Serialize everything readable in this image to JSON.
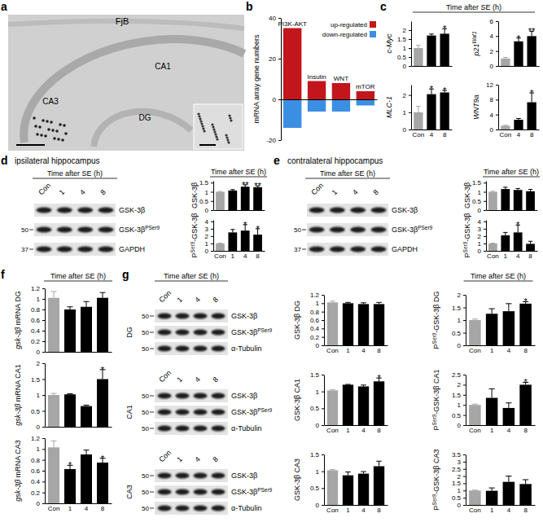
{
  "panel_letters": [
    "a",
    "b",
    "c",
    "d",
    "e",
    "f",
    "g"
  ],
  "time_header": "Time after SE (h)",
  "sections": [
    "ipsilateral hippocampus",
    "contralateral hippocampus"
  ],
  "micrograph": {
    "title": "FjB",
    "regions": [
      "CA1",
      "DG",
      "CA3"
    ]
  },
  "blots": [
    {
      "lanes": [
        "Con",
        "1",
        "4",
        "8"
      ],
      "bands": [
        [
          {
            "t": "GSK-3β"
          }
        ],
        [
          {
            "t": "GSK-3β"
          },
          {
            "t": "PSer9",
            "sup": true
          }
        ],
        [
          {
            "t": "GAPDH"
          }
        ]
      ],
      "mw": [
        null,
        50,
        37
      ]
    },
    {
      "lanes": [
        "Con",
        "1",
        "4",
        "8"
      ],
      "bands": [
        [
          {
            "t": "GSK-3β"
          }
        ],
        [
          {
            "t": "GSK-3β"
          },
          {
            "t": "PSer9",
            "sup": true
          }
        ],
        [
          {
            "t": "GAPDH"
          }
        ]
      ],
      "mw": [
        null,
        50,
        37
      ]
    },
    {
      "region": "DG",
      "lanes": [
        "Con",
        "1",
        "4",
        "8"
      ],
      "bands": [
        [
          {
            "t": "GSK-3β"
          }
        ],
        [
          {
            "t": "GSK-3β"
          },
          {
            "t": "PSer9",
            "sup": true
          }
        ],
        [
          {
            "t": "α-Tubulin"
          }
        ]
      ],
      "mw": [
        50,
        50,
        50
      ]
    },
    {
      "region": "CA1",
      "lanes": [
        "Con",
        "1",
        "4",
        "8"
      ],
      "bands": [
        [
          {
            "t": "GSK-3β"
          }
        ],
        [
          {
            "t": "GSK-3β"
          },
          {
            "t": "PSer9",
            "sup": true
          }
        ],
        [
          {
            "t": "α-Tubulin"
          }
        ]
      ],
      "mw": [
        50,
        50,
        50
      ]
    },
    {
      "region": "CA3",
      "lanes": [
        "Con",
        "1",
        "4",
        "8"
      ],
      "bands": [
        [
          {
            "t": "GSK-3β"
          }
        ],
        [
          {
            "t": "GSK-3β"
          },
          {
            "t": "PSer9",
            "sup": true
          }
        ],
        [
          {
            "t": "α-Tubulin"
          }
        ]
      ],
      "mw": [
        50,
        50,
        50
      ]
    }
  ],
  "chart_data": [
    {
      "type": "bar",
      "y_label": [
        {
          "t": "mRNA array gene numbers"
        }
      ],
      "categories": [
        "PI3K-AKT",
        "Insulin",
        "WNT",
        "mTOR"
      ],
      "series": [
        {
          "name": "up-regulated",
          "color": "#c3161c",
          "values": [
            35,
            9,
            8,
            4
          ]
        },
        {
          "name": "down-regulated",
          "color": "#3b8fe3",
          "values": [
            -14,
            -6,
            -6,
            -3
          ]
        }
      ],
      "ylim": [
        -20,
        40
      ],
      "yticks": [
        -20,
        0,
        20,
        40
      ],
      "legend": "top-right"
    },
    {
      "type": "bar",
      "y_label": [
        {
          "t": "c-Myc"
        }
      ],
      "categories": [
        null,
        null,
        null
      ],
      "values": [
        1,
        1.7,
        1.8
      ],
      "errors": [
        0.15,
        0.08,
        0.28
      ],
      "stars": [
        null,
        null,
        "*"
      ],
      "colors": [
        "#a6a6a6",
        "#000000",
        "#000000"
      ],
      "ylim": [
        0,
        2.5
      ],
      "yticks": [
        0,
        0.5,
        1,
        1.5,
        2
      ]
    },
    {
      "type": "bar",
      "y_label": [
        {
          "t": "MLC-1"
        }
      ],
      "categories": [
        "Con",
        "4",
        "8"
      ],
      "values": [
        1,
        2.05,
        2.15
      ],
      "errors": [
        0.35,
        0.3,
        0.12
      ],
      "stars": [
        null,
        "*",
        "*"
      ],
      "colors": [
        "#a6a6a6",
        "#000000",
        "#000000"
      ],
      "ylim": [
        0,
        2.6
      ],
      "yticks": [
        0,
        1,
        2
      ]
    },
    {
      "type": "bar",
      "y_label": [
        {
          "t": "p21"
        },
        {
          "t": "Waf1",
          "sup": true
        }
      ],
      "categories": [
        null,
        null,
        null
      ],
      "values": [
        1,
        3.3,
        4.0
      ],
      "errors": [
        0.15,
        0.45,
        0.65
      ],
      "stars": [
        null,
        "*",
        "**"
      ],
      "colors": [
        "#a6a6a6",
        "#000000",
        "#000000"
      ],
      "ylim": [
        0,
        6
      ],
      "yticks": [
        0,
        2,
        4,
        6
      ]
    },
    {
      "type": "bar",
      "y_label": [
        {
          "t": "WNT9a"
        }
      ],
      "categories": [
        "Con",
        "4",
        "8"
      ],
      "values": [
        1,
        2.6,
        7.3
      ],
      "errors": [
        0.15,
        0.35,
        2.5
      ],
      "stars": [
        null,
        null,
        "*"
      ],
      "colors": [
        "#a6a6a6",
        "#000000",
        "#000000"
      ],
      "ylim": [
        0,
        12
      ],
      "yticks": [
        0,
        4,
        8,
        12
      ]
    },
    {
      "type": "bar",
      "y_label": [
        {
          "t": "GSK-3β"
        }
      ],
      "categories": [
        null,
        null,
        null,
        null
      ],
      "values": [
        1,
        1.07,
        1.28,
        1.25
      ],
      "errors": [
        0.02,
        0.05,
        0.1,
        0.07
      ],
      "stars": [
        null,
        null,
        "**",
        "**"
      ],
      "colors": [
        "#a6a6a6",
        "#000000",
        "#000000",
        "#000000"
      ],
      "ylim": [
        0,
        1.6
      ],
      "yticks": [
        0,
        0.5,
        1,
        1.5
      ]
    },
    {
      "type": "bar",
      "y_label": [
        {
          "t": "P"
        },
        {
          "t": "Ser9",
          "sup": true
        },
        {
          "t": "-GSK-3β"
        }
      ],
      "categories": [
        "Con",
        "1",
        "4",
        "8"
      ],
      "values": [
        1,
        2.5,
        2.75,
        2.2
      ],
      "errors": [
        0.05,
        0.4,
        0.8,
        0.8
      ],
      "stars": [
        null,
        null,
        "*",
        "*"
      ],
      "colors": [
        "#a6a6a6",
        "#000000",
        "#000000",
        "#000000"
      ],
      "ylim": [
        0,
        4.2
      ],
      "yticks": [
        0,
        1,
        2,
        3,
        4
      ]
    },
    {
      "type": "bar",
      "y_label": [
        {
          "t": "GSK-3β"
        }
      ],
      "categories": [
        null,
        null,
        null,
        null
      ],
      "values": [
        1,
        1.15,
        1.1,
        1.03
      ],
      "errors": [
        0.03,
        0.1,
        0.08,
        0.1
      ],
      "colors": [
        "#a6a6a6",
        "#000000",
        "#000000",
        "#000000"
      ],
      "ylim": [
        0,
        1.6
      ],
      "yticks": [
        0,
        0.5,
        1,
        1.5
      ]
    },
    {
      "type": "bar",
      "y_label": [
        {
          "t": "P"
        },
        {
          "t": "Ser9",
          "sup": true
        },
        {
          "t": "-GSK-3β"
        }
      ],
      "categories": [
        "Con",
        "1",
        "4",
        "8"
      ],
      "values": [
        1,
        2.1,
        2.5,
        0.95
      ],
      "errors": [
        0.05,
        0.4,
        1.0,
        0.35
      ],
      "stars": [
        null,
        null,
        "*",
        null
      ],
      "colors": [
        "#a6a6a6",
        "#000000",
        "#000000",
        "#000000"
      ],
      "ylim": [
        0,
        4.2
      ],
      "yticks": [
        0,
        1,
        2,
        3,
        4
      ]
    },
    {
      "type": "bar",
      "y_label": [
        {
          "t": "gsk-3β"
        },
        {
          "t": " mRNA DG"
        }
      ],
      "categories": [
        null,
        null,
        null,
        null
      ],
      "values": [
        1.02,
        0.8,
        0.85,
        1.02
      ],
      "errors": [
        0.12,
        0.05,
        0.1,
        0.1
      ],
      "colors": [
        "#a6a6a6",
        "#000000",
        "#000000",
        "#000000"
      ],
      "ylim": [
        0,
        1.2
      ],
      "yticks": [
        0,
        0.2,
        0.4,
        0.6,
        0.8,
        1,
        1.2
      ]
    },
    {
      "type": "bar",
      "y_label": [
        {
          "t": "gsk-3β"
        },
        {
          "t": " mRNA CA1"
        }
      ],
      "categories": [
        null,
        null,
        null,
        null
      ],
      "values": [
        1,
        1.02,
        0.65,
        1.5
      ],
      "errors": [
        0.05,
        0.02,
        0.03,
        0.3
      ],
      "stars": [
        null,
        null,
        null,
        "*"
      ],
      "colors": [
        "#a6a6a6",
        "#000000",
        "#000000",
        "#000000"
      ],
      "ylim": [
        0,
        2
      ],
      "yticks": [
        0,
        0.5,
        1,
        1.5,
        2
      ]
    },
    {
      "type": "bar",
      "y_label": [
        {
          "t": "gsk-3β"
        },
        {
          "t": " mRNA CA3"
        }
      ],
      "categories": [
        "Con",
        "1",
        "4",
        "8"
      ],
      "values": [
        1.03,
        0.63,
        0.9,
        0.75
      ],
      "errors": [
        0.12,
        0.07,
        0.08,
        0.08
      ],
      "stars": [
        null,
        "*",
        null,
        "*"
      ],
      "colors": [
        "#a6a6a6",
        "#000000",
        "#000000",
        "#000000"
      ],
      "ylim": [
        0,
        1.2
      ],
      "yticks": [
        0,
        0.2,
        0.4,
        0.6,
        0.8,
        1,
        1.2
      ]
    },
    {
      "type": "bar",
      "y_label": [
        {
          "t": "GSK-3β DG"
        }
      ],
      "categories": [
        "Con",
        "1",
        "4",
        "8"
      ],
      "values": [
        1.02,
        1,
        0.98,
        0.98
      ],
      "errors": [
        0.03,
        0.02,
        0.03,
        0.04
      ],
      "colors": [
        "#a6a6a6",
        "#000000",
        "#000000",
        "#000000"
      ],
      "ylim": [
        0,
        1.2
      ],
      "yticks": [
        0,
        0.2,
        0.4,
        0.6,
        0.8,
        1,
        1.2
      ]
    },
    {
      "type": "bar",
      "y_label": [
        {
          "t": "P"
        },
        {
          "t": "Ser9",
          "sup": true
        },
        {
          "t": "-GSK-3β DG"
        }
      ],
      "categories": [
        "Con",
        "1",
        "4",
        "8"
      ],
      "values": [
        1,
        1.25,
        1.35,
        1.65
      ],
      "errors": [
        0.04,
        0.2,
        0.3,
        0.08
      ],
      "stars": [
        null,
        null,
        null,
        "*"
      ],
      "colors": [
        "#a6a6a6",
        "#000000",
        "#000000",
        "#000000"
      ],
      "ylim": [
        0,
        2
      ],
      "yticks": [
        0,
        0.5,
        1,
        1.5,
        2
      ]
    },
    {
      "type": "bar",
      "y_label": [
        {
          "t": "GSK-3β CA1"
        }
      ],
      "categories": [
        "Con",
        "1",
        "4",
        "8"
      ],
      "values": [
        1.03,
        1.2,
        1.15,
        1.3
      ],
      "errors": [
        0.02,
        0.01,
        0.04,
        0.1
      ],
      "stars": [
        null,
        null,
        null,
        "*"
      ],
      "colors": [
        "#a6a6a6",
        "#000000",
        "#000000",
        "#000000"
      ],
      "ylim": [
        0,
        1.5
      ],
      "yticks": [
        0,
        0.5,
        1,
        1.5
      ]
    },
    {
      "type": "bar",
      "y_label": [
        {
          "t": "P"
        },
        {
          "t": "Ser9",
          "sup": true
        },
        {
          "t": "-GSK-3β CA1"
        }
      ],
      "categories": [
        "Con",
        "1",
        "4",
        "8"
      ],
      "values": [
        1,
        1.35,
        0.85,
        2.0
      ],
      "errors": [
        0.04,
        0.45,
        0.25,
        0.12
      ],
      "stars": [
        null,
        null,
        null,
        "*"
      ],
      "colors": [
        "#a6a6a6",
        "#000000",
        "#000000",
        "#000000"
      ],
      "ylim": [
        0,
        2.5
      ],
      "yticks": [
        0,
        0.5,
        1,
        1.5,
        2,
        2.5
      ]
    },
    {
      "type": "bar",
      "y_label": [
        {
          "t": "GSK-3β CA3"
        }
      ],
      "categories": [
        "Con",
        "1",
        "4",
        "8"
      ],
      "values": [
        1.03,
        0.88,
        0.93,
        1.15
      ],
      "errors": [
        0.02,
        0.1,
        0.06,
        0.15
      ],
      "colors": [
        "#a6a6a6",
        "#000000",
        "#000000",
        "#000000"
      ],
      "ylim": [
        0,
        1.5
      ],
      "yticks": [
        0,
        0.5,
        1,
        1.5
      ]
    },
    {
      "type": "bar",
      "y_label": [
        {
          "t": "P"
        },
        {
          "t": "Ser9",
          "sup": true
        },
        {
          "t": "-GSK-3β CA3"
        }
      ],
      "categories": [
        "Con",
        "1",
        "4",
        "8"
      ],
      "values": [
        1,
        0.98,
        1.6,
        1.45
      ],
      "errors": [
        0.03,
        0.2,
        0.4,
        0.3
      ],
      "colors": [
        "#a6a6a6",
        "#000000",
        "#000000",
        "#000000"
      ],
      "ylim": [
        0,
        3.5
      ],
      "yticks": [
        0,
        0.5,
        1,
        1.5,
        2,
        2.5,
        3,
        3.5
      ]
    }
  ]
}
